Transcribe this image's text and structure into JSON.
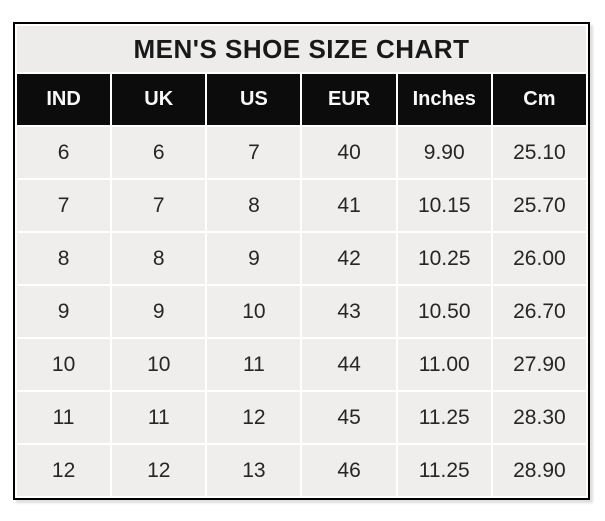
{
  "title": "MEN'S SHOE SIZE CHART",
  "chart_data": {
    "type": "table",
    "title": "MEN'S SHOE SIZE CHART",
    "columns": [
      "IND",
      "UK",
      "US",
      "EUR",
      "Inches",
      "Cm"
    ],
    "rows": [
      [
        "6",
        "6",
        "7",
        "40",
        "9.90",
        "25.10"
      ],
      [
        "7",
        "7",
        "8",
        "41",
        "10.15",
        "25.70"
      ],
      [
        "8",
        "8",
        "9",
        "42",
        "10.25",
        "26.00"
      ],
      [
        "9",
        "9",
        "10",
        "43",
        "10.50",
        "26.70"
      ],
      [
        "10",
        "10",
        "11",
        "44",
        "11.00",
        "27.90"
      ],
      [
        "11",
        "11",
        "12",
        "45",
        "11.25",
        "28.30"
      ],
      [
        "12",
        "12",
        "13",
        "46",
        "11.25",
        "28.90"
      ]
    ]
  },
  "colors": {
    "border": "#000000",
    "title_bg": "#edeceb",
    "header_bg": "#0c0c0c",
    "header_text": "#f8f8f8",
    "cell_bg": "#efeeec",
    "cell_text": "#262626",
    "separator": "#ffffff"
  }
}
